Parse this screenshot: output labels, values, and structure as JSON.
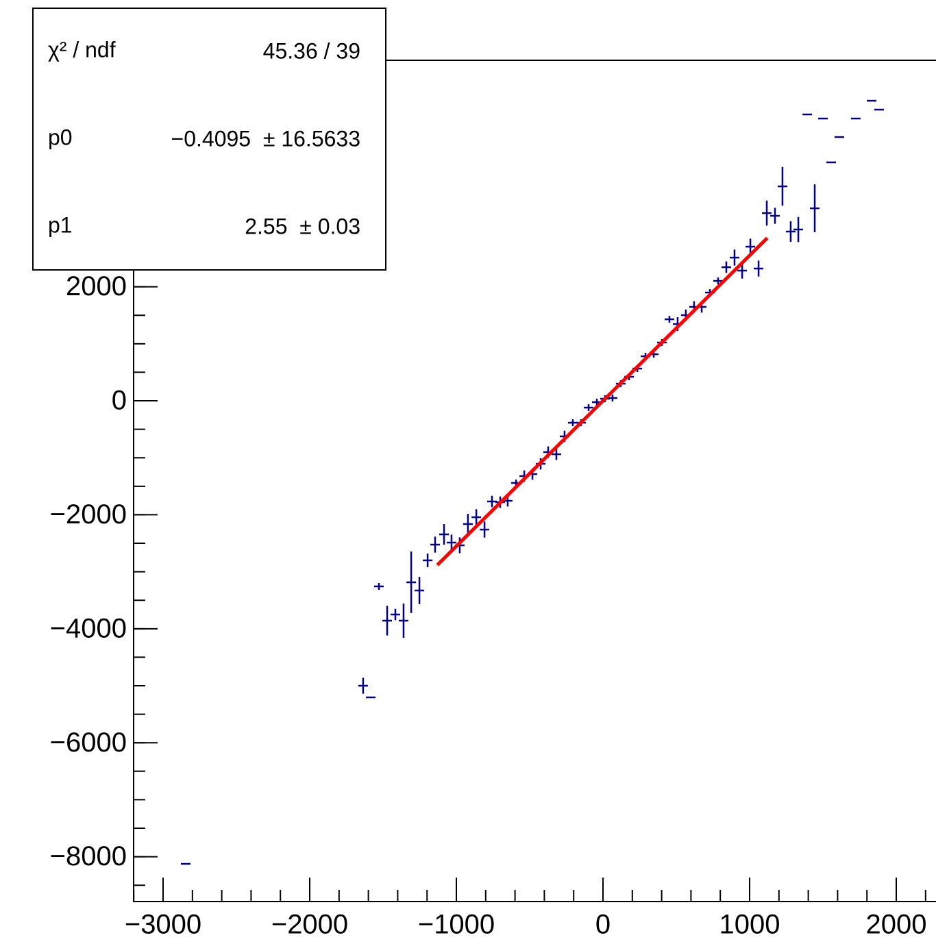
{
  "chart_data": {
    "type": "scatter",
    "xlim": [
      -3201,
      2271
    ],
    "ylim": [
      -8786,
      5974
    ],
    "xticks": [
      {
        "value": -3000,
        "label": "−3000"
      },
      {
        "value": -2000,
        "label": "−2000"
      },
      {
        "value": -1000,
        "label": "−1000"
      },
      0,
      1000,
      2000
    ],
    "yticks": [
      {
        "value": -8000,
        "label": "−8000"
      },
      {
        "value": -6000,
        "label": "−6000"
      },
      {
        "value": -4000,
        "label": "−4000"
      },
      {
        "value": -2000,
        "label": "−2000"
      },
      0,
      2000
    ],
    "series": [
      {
        "color": "#000080",
        "x": [
          -2846,
          -1636,
          -1584,
          -1528,
          -1472,
          -1416,
          -1360,
          -1308,
          -1252,
          -1196,
          -1145,
          -1084,
          -1033,
          -977,
          -921,
          -864,
          -808,
          -757,
          -701,
          -650,
          -593,
          -537,
          -481,
          -425,
          -374,
          -318,
          -262,
          -206,
          -150,
          -98,
          -42,
          14,
          65,
          121,
          178,
          234,
          290,
          346,
          402,
          453,
          509,
          565,
          621,
          673,
          729,
          785,
          841,
          897,
          949,
          1005,
          1061,
          1117,
          1173,
          1224,
          1280,
          1332,
          1393,
          1444,
          1500,
          1556,
          1612,
          1724,
          1832,
          1883
        ],
        "values": [
          -8125,
          -5000,
          -5204,
          -3257,
          -3858,
          -3750,
          -3858,
          -3185,
          -3329,
          -2800,
          -2524,
          -2344,
          -2488,
          -2536,
          -2163,
          -2043,
          -2260,
          -1767,
          -1779,
          -1755,
          -1442,
          -1322,
          -1286,
          -1106,
          -901,
          -938,
          -625,
          -385,
          -385,
          -120,
          -24,
          36,
          48,
          300,
          421,
          565,
          781,
          817,
          1022,
          1430,
          1346,
          1502,
          1647,
          1647,
          1899,
          2103,
          2344,
          2512,
          2284,
          2704,
          2320,
          3293,
          3245,
          3762,
          2969,
          3005,
          5024,
          3377,
          4952,
          4183,
          4627,
          4952,
          5264,
          5108
        ],
        "errors": [
          0,
          140,
          0,
          60,
          260,
          100,
          300,
          540,
          240,
          120,
          140,
          180,
          140,
          140,
          180,
          140,
          140,
          100,
          100,
          100,
          60,
          100,
          100,
          100,
          100,
          100,
          100,
          60,
          60,
          60,
          60,
          60,
          60,
          60,
          60,
          60,
          60,
          60,
          60,
          60,
          120,
          100,
          100,
          100,
          60,
          60,
          100,
          140,
          140,
          140,
          140,
          220,
          140,
          340,
          180,
          220,
          0,
          420,
          0,
          0,
          0,
          0,
          0,
          0
        ]
      }
    ],
    "fit": {
      "color": "#ff0000",
      "p0": -0.4095,
      "p1": 2.55,
      "range": [
        -1130,
        1120
      ]
    },
    "stats": [
      {
        "label": "χ² / ndf",
        "value": "45.36 / 39"
      },
      {
        "label": "p0",
        "value": "−0.4095  ± 16.5633"
      },
      {
        "label": "p1",
        "value": "2.55  ± 0.03"
      }
    ]
  }
}
